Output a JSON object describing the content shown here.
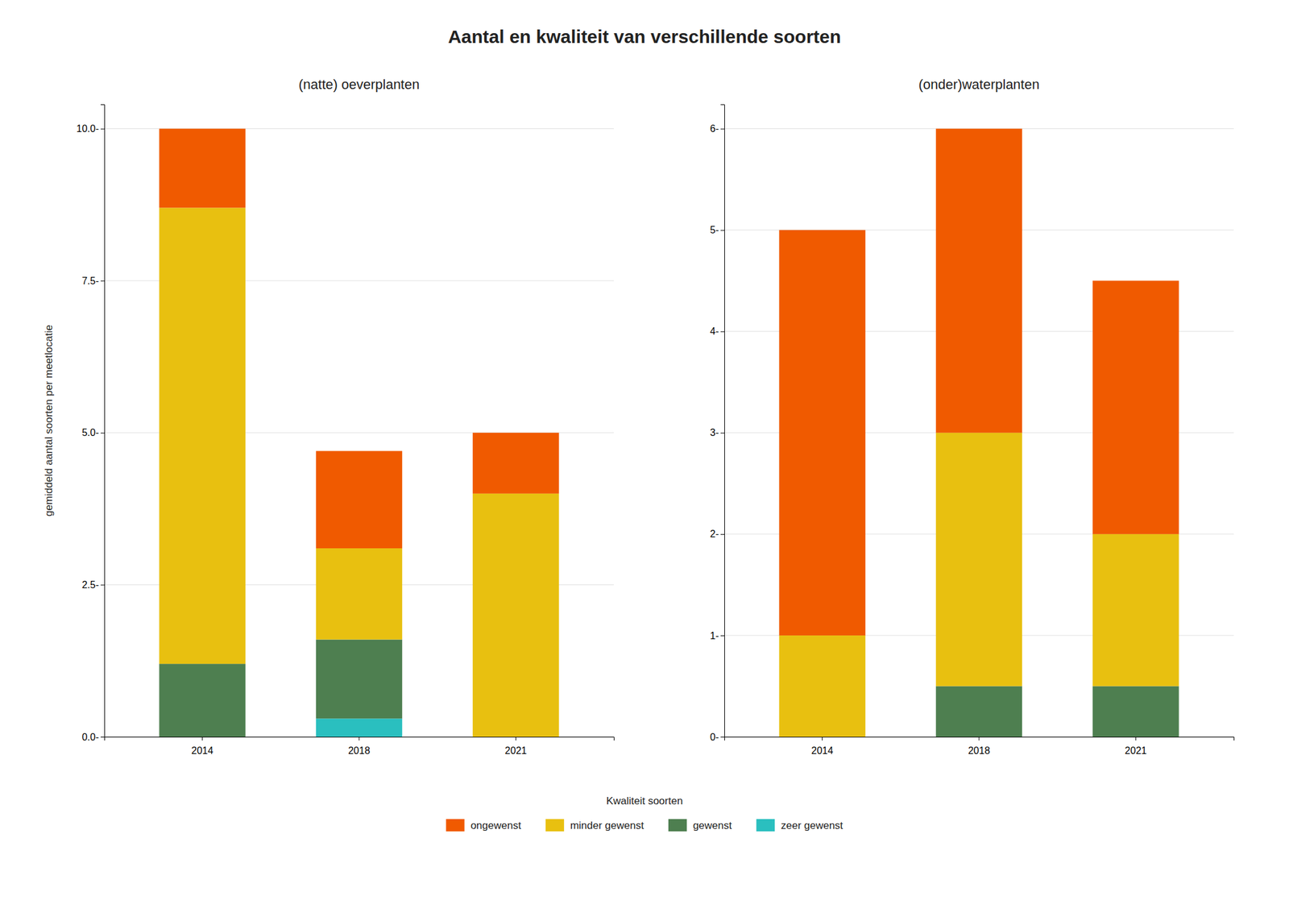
{
  "title": "Aantal en kwaliteit van verschillende soorten",
  "legend_title": "Kwaliteit soorten",
  "chart_data": [
    {
      "type": "bar",
      "stacked": true,
      "grid": true,
      "legend": "bottom",
      "title": "(natte) oeverplanten",
      "ylabel": "gemiddeld aantal soorten per meetlocatie",
      "categories": [
        "2014",
        "2018",
        "2021"
      ],
      "series": [
        {
          "name": "zeer gewenst",
          "color": "#2ABFBF",
          "values": [
            0.0,
            0.3,
            0.0
          ]
        },
        {
          "name": "gewenst",
          "color": "#4E7F50",
          "values": [
            1.2,
            1.3,
            0.0
          ]
        },
        {
          "name": "minder gewenst",
          "color": "#E8C010",
          "values": [
            7.5,
            1.5,
            4.0
          ]
        },
        {
          "name": "ongewenst",
          "color": "#F05A00",
          "values": [
            1.3,
            1.6,
            1.0
          ]
        }
      ],
      "ylim": [
        0,
        10.4
      ],
      "yticks": [
        {
          "value": 0.0,
          "label": "0.0-"
        },
        {
          "value": 2.5,
          "label": "2.5-"
        },
        {
          "value": 5.0,
          "label": "5.0-"
        },
        {
          "value": 7.5,
          "label": "7.5-"
        },
        {
          "value": 10.0,
          "label": "10.0-"
        }
      ]
    },
    {
      "type": "bar",
      "stacked": true,
      "grid": true,
      "title": "(onder)waterplanten",
      "categories": [
        "2014",
        "2018",
        "2021"
      ],
      "series": [
        {
          "name": "zeer gewenst",
          "color": "#2ABFBF",
          "values": [
            0.0,
            0.0,
            0.0
          ]
        },
        {
          "name": "gewenst",
          "color": "#4E7F50",
          "values": [
            0.0,
            0.5,
            0.5
          ]
        },
        {
          "name": "minder gewenst",
          "color": "#E8C010",
          "values": [
            1.0,
            2.5,
            1.5
          ]
        },
        {
          "name": "ongewenst",
          "color": "#F05A00",
          "values": [
            4.0,
            3.0,
            2.5
          ]
        }
      ],
      "ylim": [
        0,
        6.24
      ],
      "yticks": [
        {
          "value": 0,
          "label": "0-"
        },
        {
          "value": 1,
          "label": "1-"
        },
        {
          "value": 2,
          "label": "2-"
        },
        {
          "value": 3,
          "label": "3-"
        },
        {
          "value": 4,
          "label": "4-"
        },
        {
          "value": 5,
          "label": "5-"
        },
        {
          "value": 6,
          "label": "6-"
        }
      ]
    }
  ]
}
